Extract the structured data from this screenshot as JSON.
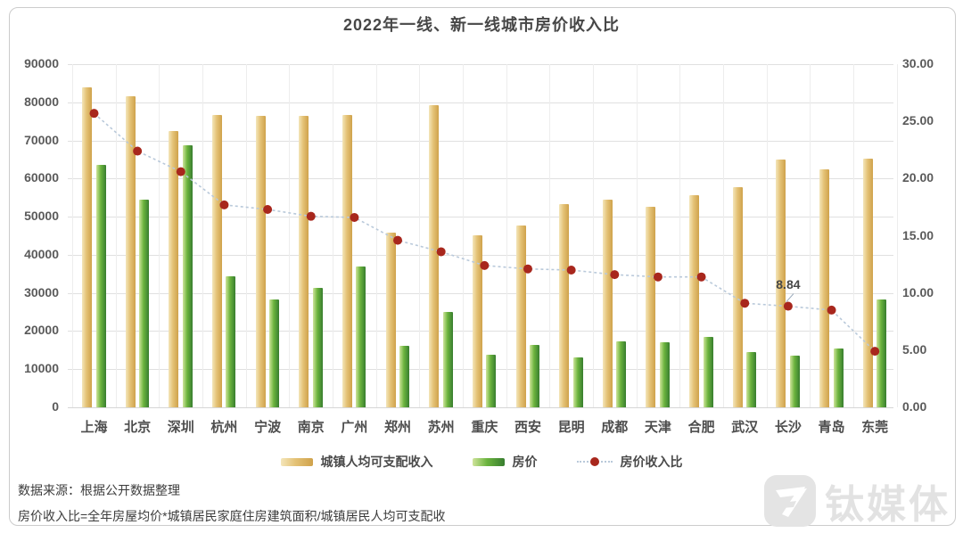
{
  "title": "2022年一线、新一线城市房价收入比",
  "chart_data": {
    "type": "bar+line",
    "categories": [
      "上海",
      "北京",
      "深圳",
      "杭州",
      "宁波",
      "南京",
      "广州",
      "郑州",
      "苏州",
      "重庆",
      "西安",
      "昆明",
      "成都",
      "天津",
      "合肥",
      "武汉",
      "长沙",
      "青岛",
      "东莞"
    ],
    "series": [
      {
        "name": "城镇人均可支配收入",
        "type": "bar",
        "axis": "left",
        "colors": [
          "#f4e6ba",
          "#e4c276",
          "#cfa24b"
        ],
        "values": [
          84000,
          81500,
          72400,
          76700,
          76500,
          76400,
          76600,
          45800,
          79300,
          45200,
          47800,
          53400,
          54500,
          52500,
          55600,
          57800,
          65000,
          62300,
          65200
        ]
      },
      {
        "name": "房价",
        "type": "bar",
        "axis": "left",
        "colors": [
          "#cfe49b",
          "#6cb43e",
          "#377d2f"
        ],
        "values": [
          63700,
          54400,
          68700,
          34400,
          28400,
          31300,
          36900,
          16100,
          24900,
          13900,
          16300,
          13200,
          17400,
          17100,
          18400,
          14500,
          13500,
          15500,
          28400
        ]
      },
      {
        "name": "房价收入比",
        "type": "line",
        "axis": "right",
        "line_color": "#b9c9da",
        "dot_color": "#a8271d",
        "values": [
          25.7,
          22.4,
          20.6,
          17.7,
          17.3,
          16.7,
          16.6,
          14.6,
          13.6,
          12.4,
          12.1,
          12.0,
          11.6,
          11.4,
          11.4,
          9.1,
          8.84,
          8.5,
          4.9
        ]
      }
    ],
    "left_axis": {
      "min": 0,
      "max": 90000,
      "step": 10000,
      "labels": [
        "0",
        "10000",
        "20000",
        "30000",
        "40000",
        "50000",
        "60000",
        "70000",
        "80000",
        "90000"
      ]
    },
    "right_axis": {
      "min": 0,
      "max": 30,
      "step": 5,
      "labels": [
        "0.00",
        "5.00",
        "10.00",
        "15.00",
        "20.00",
        "25.00",
        "30.00"
      ]
    },
    "annotation": {
      "text": "8.84",
      "category": "长沙",
      "value": 8.84
    },
    "legend_position": "bottom",
    "grid": true
  },
  "footer": {
    "source": "数据来源：根据公开数据整理",
    "formula": "房价收入比=全年房屋均价*城镇居民家庭住房建筑面积/城镇居民人均可支配收"
  },
  "watermark": {
    "brand": "钛媒体"
  }
}
